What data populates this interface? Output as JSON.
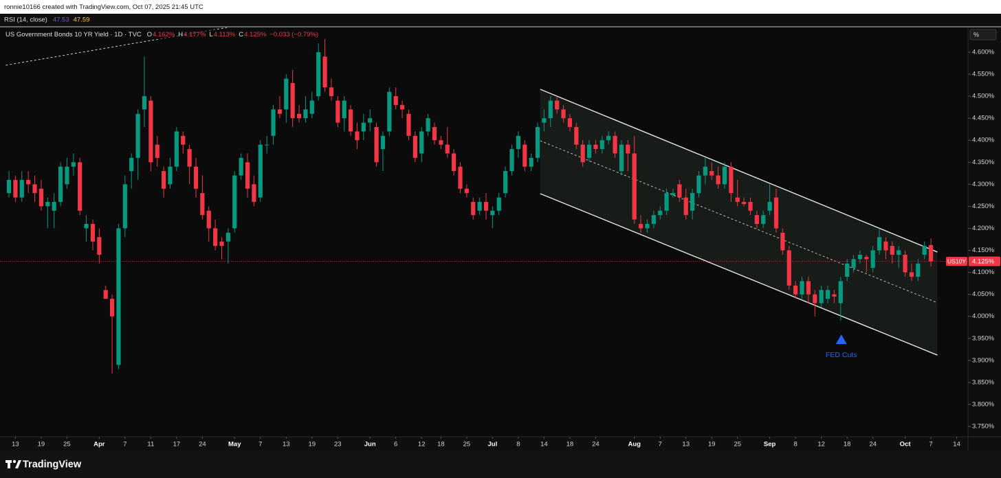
{
  "header": {
    "credit": "ronnie10166 created with TradingView.com, Oct 07, 2025 21:45 UTC"
  },
  "rsi": {
    "label": "RSI (14, close)",
    "values": [
      47.53,
      47.59
    ],
    "colors": [
      "#7e57c2",
      "#f7c948"
    ]
  },
  "footer": {
    "brand": "TradingView"
  },
  "chart_data": {
    "type": "candlestick",
    "title": "US Government Bonds 10 YR Yield · 1D · TVC",
    "ohlc_legend": [
      {
        "key": "O",
        "value": "4.162%"
      },
      {
        "key": "H",
        "value": "4.177%"
      },
      {
        "key": "L",
        "value": "4.113%"
      },
      {
        "key": "C",
        "value": "4.125%"
      }
    ],
    "change": "−0.033 (−0.79%)",
    "symbol": "US10Y",
    "unit": "%",
    "last_price": {
      "value": 4.125,
      "label": "4.125%"
    },
    "colors": {
      "up": "#089981",
      "down": "#f23645"
    },
    "xlim": [
      -1.39,
      148.75
    ],
    "ylim": [
      3.7266,
      4.6561
    ],
    "xticks": [
      {
        "value": 1,
        "label": "13"
      },
      {
        "value": 5,
        "label": "19"
      },
      {
        "value": 9,
        "label": "25"
      },
      {
        "value": 14,
        "label": "Apr"
      },
      {
        "value": 18,
        "label": "7"
      },
      {
        "value": 22,
        "label": "11"
      },
      {
        "value": 26,
        "label": "17"
      },
      {
        "value": 30,
        "label": "24"
      },
      {
        "value": 35,
        "label": "May"
      },
      {
        "value": 39,
        "label": "7"
      },
      {
        "value": 43,
        "label": "13"
      },
      {
        "value": 47,
        "label": "19"
      },
      {
        "value": 51,
        "label": "23"
      },
      {
        "value": 56,
        "label": "Jun"
      },
      {
        "value": 60,
        "label": "6"
      },
      {
        "value": 64,
        "label": "12"
      },
      {
        "value": 67,
        "label": "18"
      },
      {
        "value": 71,
        "label": "25"
      },
      {
        "value": 75,
        "label": "Jul"
      },
      {
        "value": 79,
        "label": "8"
      },
      {
        "value": 83,
        "label": "14"
      },
      {
        "value": 87,
        "label": "18"
      },
      {
        "value": 91,
        "label": "24"
      },
      {
        "value": 97,
        "label": "Aug"
      },
      {
        "value": 101,
        "label": "7"
      },
      {
        "value": 105,
        "label": "13"
      },
      {
        "value": 109,
        "label": "19"
      },
      {
        "value": 113,
        "label": "25"
      },
      {
        "value": 118,
        "label": "Sep"
      },
      {
        "value": 122,
        "label": "8"
      },
      {
        "value": 126,
        "label": "12"
      },
      {
        "value": 130,
        "label": "18"
      },
      {
        "value": 134,
        "label": "24"
      },
      {
        "value": 139,
        "label": "Oct"
      },
      {
        "value": 143,
        "label": "7"
      },
      {
        "value": 147,
        "label": "14"
      }
    ],
    "yticks": [
      {
        "value": 4.6,
        "label": "4.600%"
      },
      {
        "value": 4.55,
        "label": "4.550%"
      },
      {
        "value": 4.5,
        "label": "4.500%"
      },
      {
        "value": 4.45,
        "label": "4.450%"
      },
      {
        "value": 4.4,
        "label": "4.400%"
      },
      {
        "value": 4.35,
        "label": "4.350%"
      },
      {
        "value": 4.3,
        "label": "4.300%"
      },
      {
        "value": 4.25,
        "label": "4.250%"
      },
      {
        "value": 4.2,
        "label": "4.200%"
      },
      {
        "value": 4.15,
        "label": "4.150%"
      },
      {
        "value": 4.1,
        "label": "4.100%"
      },
      {
        "value": 4.05,
        "label": "4.050%"
      },
      {
        "value": 4.0,
        "label": "4.000%"
      },
      {
        "value": 3.95,
        "label": "3.950%"
      },
      {
        "value": 3.9,
        "label": "3.900%"
      },
      {
        "value": 3.85,
        "label": "3.850%"
      },
      {
        "value": 3.8,
        "label": "3.800%"
      },
      {
        "value": 3.75,
        "label": "3.750%"
      }
    ],
    "channel": {
      "x": [
        82.4,
        144
      ],
      "upper": [
        4.5158,
        4.1462
      ],
      "middle": [
        4.3988,
        4.0309
      ],
      "lower": [
        4.2787,
        3.9121
      ]
    },
    "trendline": {
      "x": [
        -0.5,
        33.8
      ],
      "y": [
        4.5704,
        4.656
      ]
    },
    "annotation": {
      "text": "FED Cuts",
      "x": 129.1,
      "y": 3.948,
      "color": "#2962ff"
    },
    "ohlc": [
      [
        4.28,
        4.33,
        4.27,
        4.31
      ],
      [
        4.31,
        4.32,
        4.26,
        4.27
      ],
      [
        4.27,
        4.33,
        4.26,
        4.31
      ],
      [
        4.31,
        4.33,
        4.28,
        4.3
      ],
      [
        4.3,
        4.32,
        4.26,
        4.28
      ],
      [
        4.29,
        4.31,
        4.24,
        4.25
      ],
      [
        4.25,
        4.27,
        4.2,
        4.26
      ],
      [
        4.24,
        4.28,
        4.2,
        4.26
      ],
      [
        4.26,
        4.35,
        4.25,
        4.34
      ],
      [
        4.3,
        4.36,
        4.29,
        4.34
      ],
      [
        4.34,
        4.37,
        4.32,
        4.35
      ],
      [
        4.35,
        4.36,
        4.23,
        4.24
      ],
      [
        4.2,
        4.23,
        4.17,
        4.21
      ],
      [
        4.21,
        4.22,
        4.15,
        4.17
      ],
      [
        4.18,
        4.2,
        4.12,
        4.14
      ],
      [
        4.06,
        4.07,
        4.04,
        4.04
      ],
      [
        4.04,
        4.05,
        3.87,
        4.0
      ],
      [
        3.89,
        4.21,
        3.88,
        4.2
      ],
      [
        4.2,
        4.32,
        4.18,
        4.3
      ],
      [
        4.33,
        4.37,
        4.29,
        4.36
      ],
      [
        4.36,
        4.47,
        4.31,
        4.46
      ],
      [
        4.47,
        4.59,
        4.43,
        4.5
      ],
      [
        4.49,
        4.5,
        4.33,
        4.35
      ],
      [
        4.39,
        4.41,
        4.34,
        4.36
      ],
      [
        4.33,
        4.34,
        4.27,
        4.29
      ],
      [
        4.3,
        4.36,
        4.29,
        4.34
      ],
      [
        4.34,
        4.43,
        4.33,
        4.42
      ],
      [
        4.41,
        4.42,
        4.37,
        4.39
      ],
      [
        4.38,
        4.39,
        4.3,
        4.34
      ],
      [
        4.34,
        4.36,
        4.27,
        4.29
      ],
      [
        4.28,
        4.32,
        4.22,
        4.23
      ],
      [
        4.24,
        4.25,
        4.17,
        4.2
      ],
      [
        4.2,
        4.22,
        4.15,
        4.16
      ],
      [
        4.17,
        4.18,
        4.13,
        4.16
      ],
      [
        4.17,
        4.2,
        4.12,
        4.19
      ],
      [
        4.2,
        4.33,
        4.19,
        4.32
      ],
      [
        4.32,
        4.37,
        4.31,
        4.36
      ],
      [
        4.35,
        4.37,
        4.27,
        4.29
      ],
      [
        4.3,
        4.32,
        4.25,
        4.26
      ],
      [
        4.27,
        4.4,
        4.26,
        4.39
      ],
      [
        4.39,
        4.41,
        4.37,
        4.39
      ],
      [
        4.41,
        4.48,
        4.39,
        4.47
      ],
      [
        4.47,
        4.5,
        4.45,
        4.46
      ],
      [
        4.47,
        4.55,
        4.44,
        4.54
      ],
      [
        4.53,
        4.56,
        4.43,
        4.45
      ],
      [
        4.46,
        4.48,
        4.44,
        4.45
      ],
      [
        4.45,
        4.5,
        4.44,
        4.47
      ],
      [
        4.46,
        4.51,
        4.45,
        4.49
      ],
      [
        4.5,
        4.62,
        4.49,
        4.6
      ],
      [
        4.59,
        4.63,
        4.51,
        4.52
      ],
      [
        4.52,
        4.54,
        4.49,
        4.5
      ],
      [
        4.49,
        4.5,
        4.43,
        4.44
      ],
      [
        4.45,
        4.5,
        4.42,
        4.49
      ],
      [
        4.47,
        4.48,
        4.41,
        4.42
      ],
      [
        4.42,
        4.44,
        4.38,
        4.4
      ],
      [
        4.42,
        4.46,
        4.4,
        4.44
      ],
      [
        4.44,
        4.47,
        4.42,
        4.45
      ],
      [
        4.43,
        4.44,
        4.34,
        4.35
      ],
      [
        4.38,
        4.42,
        4.33,
        4.41
      ],
      [
        4.42,
        4.52,
        4.41,
        4.51
      ],
      [
        4.5,
        4.52,
        4.47,
        4.48
      ],
      [
        4.48,
        4.49,
        4.45,
        4.47
      ],
      [
        4.46,
        4.47,
        4.4,
        4.41
      ],
      [
        4.41,
        4.42,
        4.35,
        4.36
      ],
      [
        4.37,
        4.43,
        4.35,
        4.42
      ],
      [
        4.42,
        4.46,
        4.41,
        4.45
      ],
      [
        4.43,
        4.44,
        4.39,
        4.4
      ],
      [
        4.4,
        4.41,
        4.38,
        4.39
      ],
      [
        4.39,
        4.43,
        4.36,
        4.37
      ],
      [
        4.37,
        4.38,
        4.32,
        4.33
      ],
      [
        4.34,
        4.35,
        4.28,
        4.29
      ],
      [
        4.29,
        4.3,
        4.27,
        4.28
      ],
      [
        4.26,
        4.27,
        4.22,
        4.23
      ],
      [
        4.24,
        4.27,
        4.23,
        4.26
      ],
      [
        4.26,
        4.28,
        4.22,
        4.24
      ],
      [
        4.23,
        4.25,
        4.2,
        4.24
      ],
      [
        4.24,
        4.28,
        4.23,
        4.27
      ],
      [
        4.28,
        4.34,
        4.27,
        4.33
      ],
      [
        4.33,
        4.39,
        4.32,
        4.38
      ],
      [
        4.38,
        4.42,
        4.36,
        4.41
      ],
      [
        4.39,
        4.4,
        4.33,
        4.34
      ],
      [
        4.34,
        4.37,
        4.33,
        4.36
      ],
      [
        4.36,
        4.44,
        4.35,
        4.43
      ],
      [
        4.44,
        4.47,
        4.42,
        4.45
      ],
      [
        4.45,
        4.5,
        4.43,
        4.49
      ],
      [
        4.49,
        4.5,
        4.46,
        4.47
      ],
      [
        4.47,
        4.48,
        4.44,
        4.45
      ],
      [
        4.45,
        4.46,
        4.42,
        4.43
      ],
      [
        4.43,
        4.44,
        4.38,
        4.39
      ],
      [
        4.39,
        4.4,
        4.34,
        4.35
      ],
      [
        4.36,
        4.4,
        4.35,
        4.39
      ],
      [
        4.39,
        4.4,
        4.37,
        4.38
      ],
      [
        4.38,
        4.41,
        4.37,
        4.4
      ],
      [
        4.4,
        4.42,
        4.39,
        4.41
      ],
      [
        4.41,
        4.42,
        4.36,
        4.37
      ],
      [
        4.33,
        4.4,
        4.32,
        4.39
      ],
      [
        4.39,
        4.4,
        4.33,
        4.37
      ],
      [
        4.37,
        4.41,
        4.21,
        4.22
      ],
      [
        4.21,
        4.23,
        4.19,
        4.2
      ],
      [
        4.2,
        4.22,
        4.19,
        4.21
      ],
      [
        4.21,
        4.24,
        4.2,
        4.23
      ],
      [
        4.23,
        4.25,
        4.22,
        4.24
      ],
      [
        4.24,
        4.29,
        4.23,
        4.28
      ],
      [
        4.275,
        4.29,
        4.27,
        4.28
      ],
      [
        4.3,
        4.31,
        4.26,
        4.27
      ],
      [
        4.27,
        4.29,
        4.22,
        4.23
      ],
      [
        4.24,
        4.29,
        4.22,
        4.28
      ],
      [
        4.28,
        4.33,
        4.27,
        4.32
      ],
      [
        4.32,
        4.36,
        4.3,
        4.34
      ],
      [
        4.33,
        4.35,
        4.31,
        4.32
      ],
      [
        4.32,
        4.34,
        4.29,
        4.3
      ],
      [
        4.3,
        4.35,
        4.29,
        4.34
      ],
      [
        4.34,
        4.35,
        4.26,
        4.28
      ],
      [
        4.27,
        4.31,
        4.25,
        4.26
      ],
      [
        4.26,
        4.27,
        4.25,
        4.255
      ],
      [
        4.26,
        4.27,
        4.23,
        4.24
      ],
      [
        4.23,
        4.24,
        4.2,
        4.21
      ],
      [
        4.21,
        4.24,
        4.2,
        4.23
      ],
      [
        4.24,
        4.3,
        4.23,
        4.26
      ],
      [
        4.27,
        4.29,
        4.19,
        4.2
      ],
      [
        4.19,
        4.2,
        4.14,
        4.15
      ],
      [
        4.15,
        4.16,
        4.06,
        4.07
      ],
      [
        4.07,
        4.08,
        4.04,
        4.05
      ],
      [
        4.05,
        4.09,
        4.04,
        4.08
      ],
      [
        4.08,
        4.09,
        4.03,
        4.05
      ],
      [
        4.05,
        4.06,
        4.0,
        4.03
      ],
      [
        4.03,
        4.07,
        4.02,
        4.06
      ],
      [
        4.04,
        4.07,
        4.03,
        4.06
      ],
      [
        4.05,
        4.06,
        4.03,
        4.045
      ],
      [
        4.03,
        4.09,
        3.99,
        4.08
      ],
      [
        4.09,
        4.13,
        4.08,
        4.12
      ],
      [
        4.11,
        4.14,
        4.1,
        4.13
      ],
      [
        4.13,
        4.15,
        4.12,
        4.14
      ],
      [
        4.135,
        4.14,
        4.1,
        4.13
      ],
      [
        4.11,
        4.16,
        4.1,
        4.15
      ],
      [
        4.15,
        4.2,
        4.14,
        4.18
      ],
      [
        4.17,
        4.18,
        4.13,
        4.15
      ],
      [
        4.16,
        4.17,
        4.12,
        4.14
      ],
      [
        4.14,
        4.16,
        4.11,
        4.15
      ],
      [
        4.14,
        4.15,
        4.09,
        4.1
      ],
      [
        4.1,
        4.12,
        4.08,
        4.09
      ],
      [
        4.09,
        4.13,
        4.08,
        4.12
      ],
      [
        4.14,
        4.17,
        4.13,
        4.16
      ],
      [
        4.162,
        4.177,
        4.113,
        4.125
      ]
    ]
  }
}
